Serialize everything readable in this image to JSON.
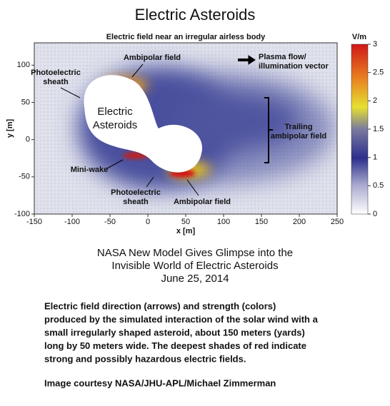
{
  "title": "Electric Asteroids",
  "figure": {
    "title": "Electric field near an irregular airless body",
    "x_label": "x [m]",
    "y_label": "y [m]",
    "xlim": [
      -150,
      250
    ],
    "xticks": [
      -150,
      -100,
      -50,
      0,
      50,
      100,
      150,
      200,
      250
    ],
    "ylim": [
      -100,
      130
    ],
    "yticks": [
      -100,
      -50,
      0,
      50,
      100
    ],
    "colorbar": {
      "label": "V/m",
      "lim": [
        0,
        3
      ],
      "ticks": [
        0,
        0.5,
        1,
        1.5,
        2,
        2.5,
        3
      ]
    },
    "body_label": [
      "Electric",
      "Asteroids"
    ],
    "annotations": [
      [
        "Ambipolar field"
      ],
      [
        "Plasma flow/",
        "illumination vector"
      ],
      [
        "Photoelectric",
        "sheath"
      ],
      [
        "Trailing",
        "ambipolar field"
      ],
      [
        "Mini-wake"
      ],
      [
        "Photoelectric",
        "sheath"
      ],
      [
        "Ambipolar field"
      ]
    ]
  },
  "headline": [
    "NASA New  Model Gives Glimpse into the",
    "Invisible World of Electric Asteroids",
    "June 25, 2014"
  ],
  "caption": [
    "Electric field direction (arrows) and strength (colors)",
    "produced by the simulated interaction of the solar wind with a",
    "small irregularly shaped asteroid, about 150 meters (yards)",
    "long by 50 meters wide. The deepest shades of red indicate",
    "strong and possibly hazardous electric fields."
  ],
  "credit": "Image courtesy NASA/JHU-APL/Michael Zimmerman"
}
